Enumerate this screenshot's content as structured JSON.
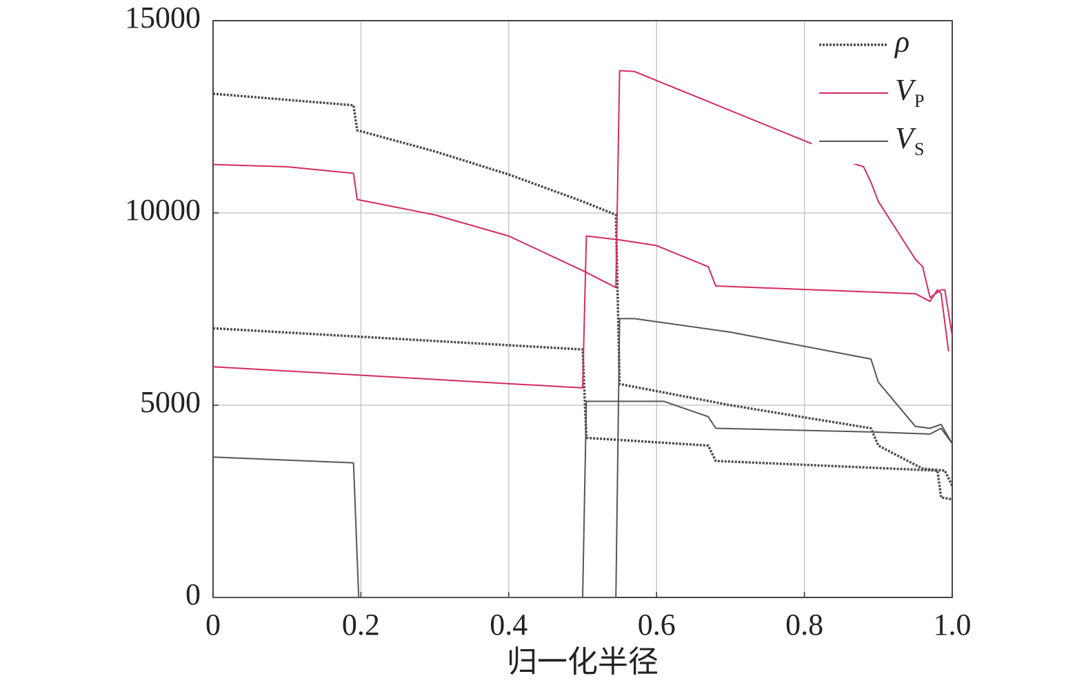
{
  "chart_data": {
    "type": "line",
    "x_label": "归一化半径",
    "xlim": [
      0,
      1
    ],
    "xticks": [
      0,
      0.2,
      0.4,
      0.6,
      0.8,
      {
        "value": 1,
        "label": "1.0"
      }
    ],
    "ylim": [
      0,
      15000
    ],
    "yticks": [
      0,
      5000,
      10000,
      15000
    ],
    "grid": true,
    "legend": "upper right",
    "series": [
      {
        "name": "ρ",
        "color": "#4a4a4a",
        "line_style": "dotted",
        "x": [
          0,
          0.19,
          0.195,
          0.3,
          0.4,
          0.5,
          0.545,
          0.55,
          0.7,
          0.89,
          0.9,
          0.96,
          0.99,
          1.0,
          null,
          0,
          0.5,
          0.505,
          0.67,
          0.68,
          0.98,
          0.985,
          1.0
        ],
        "values": [
          13100,
          12800,
          12150,
          11600,
          11000,
          10300,
          9950,
          5550,
          5000,
          4400,
          3950,
          3350,
          3300,
          2900,
          null,
          7000,
          6450,
          4150,
          3950,
          3550,
          3300,
          2600,
          2550
        ]
      },
      {
        "name": "V",
        "subscript": "P",
        "color": "#d42a5e",
        "line_style": "solid",
        "x": [
          0,
          0.1,
          0.19,
          0.195,
          0.3,
          0.4,
          0.5,
          0.545,
          0.55,
          0.57,
          0.81,
          null,
          0.855,
          0.88,
          0.89,
          0.9,
          0.95,
          0.96,
          0.97,
          0.985,
          0.99,
          1.0,
          null,
          0,
          0.5,
          0.505,
          0.55,
          0.6,
          0.67,
          0.68,
          0.95,
          0.97,
          0.98,
          0.985,
          0.995
        ],
        "values": [
          11260,
          11200,
          11030,
          10350,
          9950,
          9400,
          8500,
          8060,
          13700,
          13680,
          11800,
          null,
          11350,
          11200,
          10800,
          10300,
          8800,
          8600,
          7800,
          8000,
          8000,
          6800,
          null,
          6000,
          5450,
          9400,
          9300,
          9150,
          8600,
          8100,
          7900,
          7700,
          8000,
          7900,
          6400
        ]
      },
      {
        "name": "V",
        "subscript": "S",
        "color": "#555555",
        "line_style": "solid",
        "x": [
          0,
          0.19,
          0.197,
          0.545,
          0.55,
          0.57,
          0.7,
          0.89,
          0.9,
          0.95,
          0.97,
          0.985,
          1.0,
          null,
          0,
          0.5,
          0.505,
          0.61,
          0.67,
          0.68,
          0.9,
          0.97,
          0.985,
          1.0
        ],
        "values": [
          3650,
          3500,
          0,
          0,
          7250,
          7250,
          6900,
          6200,
          5600,
          4450,
          4400,
          4500,
          4000,
          null,
          0,
          0,
          5100,
          5100,
          4700,
          4400,
          4300,
          4250,
          4400,
          4000
        ]
      }
    ]
  }
}
